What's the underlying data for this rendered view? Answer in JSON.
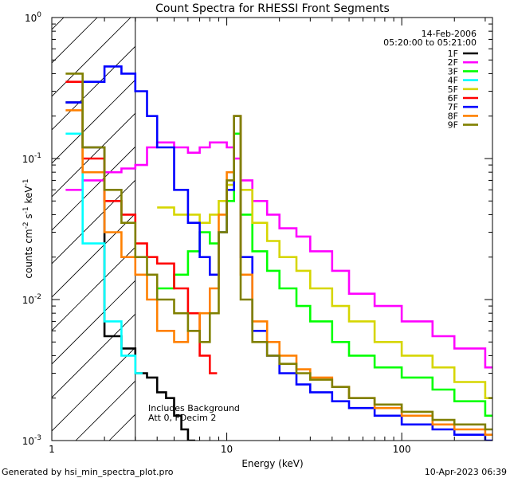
{
  "chart_data": {
    "type": "line",
    "title": "Count Spectra for RHESSI Front Segments",
    "xlabel": "Energy (keV)",
    "ylabel_main": "counts cm",
    "ylabel_sup1": "-2",
    "ylabel_mid": " s",
    "ylabel_sup2": "-1",
    "ylabel_end": " keV",
    "ylabel_sup3": "-1",
    "xscale": "log",
    "yscale": "log",
    "xlim": [
      1,
      330
    ],
    "ylim": [
      0.001,
      1
    ],
    "x_ticks": [
      {
        "value": 1,
        "label": "1"
      },
      {
        "value": 10,
        "label": "10"
      },
      {
        "value": 100,
        "label": "100"
      }
    ],
    "y_ticks": [
      {
        "value": 1,
        "base": "10",
        "exp": "0"
      },
      {
        "value": 0.1,
        "base": "10",
        "exp": "-1"
      },
      {
        "value": 0.01,
        "base": "10",
        "exp": "-2"
      },
      {
        "value": 0.001,
        "base": "10",
        "exp": "-3"
      }
    ],
    "date": "14-Feb-2006",
    "time_range": "05:20:00 to 05:21:00",
    "annotations": [
      "Includes Background",
      "Att 0, FDecim 2"
    ],
    "hatch_region_keV": [
      1,
      3
    ],
    "legend_position": "top-right",
    "series": [
      {
        "name": "1F",
        "color": "#000000",
        "x": [
          1.2,
          1.5,
          2.0,
          2.5,
          3.0,
          3.5,
          4.0,
          4.5,
          5.0,
          5.5,
          6.0
        ],
        "y": [
          0.25,
          0.12,
          0.0055,
          0.0045,
          0.003,
          0.0028,
          0.0022,
          0.002,
          0.0015,
          0.0012,
          0.001
        ]
      },
      {
        "name": "2F",
        "color": "#ff00ff",
        "x": [
          1.2,
          1.5,
          2.0,
          2.5,
          3.0,
          3.5,
          4.0,
          5.0,
          6.0,
          7.0,
          8.0,
          9.0,
          10.0,
          11.0,
          12.0,
          14.0,
          17.0,
          20.0,
          25.0,
          30.0,
          40.0,
          50.0,
          70.0,
          100.0,
          150.0,
          200.0,
          300.0
        ],
        "y": [
          0.06,
          0.07,
          0.08,
          0.085,
          0.09,
          0.12,
          0.13,
          0.12,
          0.11,
          0.12,
          0.13,
          0.13,
          0.12,
          0.1,
          0.07,
          0.05,
          0.04,
          0.032,
          0.028,
          0.022,
          0.016,
          0.011,
          0.009,
          0.007,
          0.0055,
          0.0045,
          0.0033
        ]
      },
      {
        "name": "3F",
        "color": "#00ff00",
        "x": [
          4.0,
          5.0,
          6.0,
          7.0,
          8.0,
          9.0,
          10.0,
          11.0,
          12.0,
          14.0,
          17.0,
          20.0,
          25.0,
          30.0,
          40.0,
          50.0,
          70.0,
          100.0,
          150.0,
          200.0,
          300.0
        ],
        "y": [
          0.012,
          0.015,
          0.022,
          0.03,
          0.025,
          0.03,
          0.05,
          0.15,
          0.04,
          0.022,
          0.016,
          0.012,
          0.009,
          0.007,
          0.005,
          0.004,
          0.0033,
          0.0028,
          0.0023,
          0.0019,
          0.0015
        ]
      },
      {
        "name": "4F",
        "color": "#00ffff",
        "x": [
          1.2,
          1.5,
          2.0,
          2.5,
          3.0
        ],
        "y": [
          0.15,
          0.025,
          0.007,
          0.004,
          0.003
        ]
      },
      {
        "name": "5F",
        "color": "#d6d600",
        "x": [
          4.0,
          5.0,
          6.0,
          7.0,
          8.0,
          9.0,
          10.0,
          11.0,
          12.0,
          14.0,
          17.0,
          20.0,
          25.0,
          30.0,
          40.0,
          50.0,
          70.0,
          100.0,
          150.0,
          200.0,
          300.0
        ],
        "y": [
          0.045,
          0.04,
          0.04,
          0.035,
          0.04,
          0.05,
          0.065,
          0.2,
          0.06,
          0.035,
          0.026,
          0.02,
          0.016,
          0.012,
          0.009,
          0.007,
          0.005,
          0.004,
          0.0033,
          0.0026,
          0.002
        ]
      },
      {
        "name": "6F",
        "color": "#ff0000",
        "x": [
          1.2,
          1.5,
          2.0,
          2.5,
          3.0,
          3.5,
          4.0,
          5.0,
          6.0,
          7.0,
          8.0
        ],
        "y": [
          0.35,
          0.1,
          0.05,
          0.04,
          0.025,
          0.02,
          0.018,
          0.012,
          0.008,
          0.004,
          0.003
        ]
      },
      {
        "name": "7F",
        "color": "#0000ff",
        "x": [
          1.2,
          1.5,
          2.0,
          2.5,
          3.0,
          3.5,
          4.0,
          5.0,
          6.0,
          7.0,
          8.0,
          9.0,
          10.0,
          11.0,
          12.0,
          14.0,
          17.0,
          20.0,
          25.0,
          30.0,
          40.0,
          50.0,
          70.0,
          100.0,
          150.0,
          200.0,
          300.0
        ],
        "y": [
          0.25,
          0.35,
          0.45,
          0.4,
          0.3,
          0.2,
          0.12,
          0.06,
          0.035,
          0.02,
          0.015,
          0.03,
          0.06,
          0.2,
          0.02,
          0.006,
          0.004,
          0.003,
          0.0025,
          0.0022,
          0.0019,
          0.0017,
          0.0015,
          0.0013,
          0.0012,
          0.0011,
          0.001
        ]
      },
      {
        "name": "8F",
        "color": "#ff8000",
        "x": [
          1.2,
          1.5,
          2.0,
          2.5,
          3.0,
          3.5,
          4.0,
          5.0,
          6.0,
          7.0,
          8.0,
          9.0,
          10.0,
          11.0,
          12.0,
          14.0,
          17.0,
          20.0,
          25.0,
          30.0,
          40.0,
          50.0,
          70.0,
          100.0,
          150.0,
          200.0,
          300.0
        ],
        "y": [
          0.22,
          0.08,
          0.03,
          0.02,
          0.015,
          0.01,
          0.006,
          0.005,
          0.006,
          0.008,
          0.012,
          0.04,
          0.08,
          0.2,
          0.015,
          0.007,
          0.005,
          0.004,
          0.0032,
          0.0028,
          0.0024,
          0.002,
          0.0017,
          0.0015,
          0.0013,
          0.0012,
          0.0011
        ]
      },
      {
        "name": "9F",
        "color": "#808000",
        "x": [
          1.2,
          1.5,
          2.0,
          2.5,
          3.0,
          3.5,
          4.0,
          5.0,
          6.0,
          7.0,
          8.0,
          9.0,
          10.0,
          11.0,
          12.0,
          14.0,
          17.0,
          20.0,
          25.0,
          30.0,
          40.0,
          50.0,
          70.0,
          100.0,
          150.0,
          200.0,
          300.0
        ],
        "y": [
          0.4,
          0.12,
          0.06,
          0.035,
          0.02,
          0.015,
          0.01,
          0.008,
          0.006,
          0.005,
          0.008,
          0.03,
          0.07,
          0.2,
          0.01,
          0.005,
          0.004,
          0.0035,
          0.003,
          0.0027,
          0.0024,
          0.002,
          0.0018,
          0.0016,
          0.0014,
          0.0013,
          0.0012
        ]
      }
    ]
  },
  "footer": {
    "generated": "Generated by hsi_min_spectra_plot.pro",
    "timestamp": "10-Apr-2023 06:39"
  }
}
